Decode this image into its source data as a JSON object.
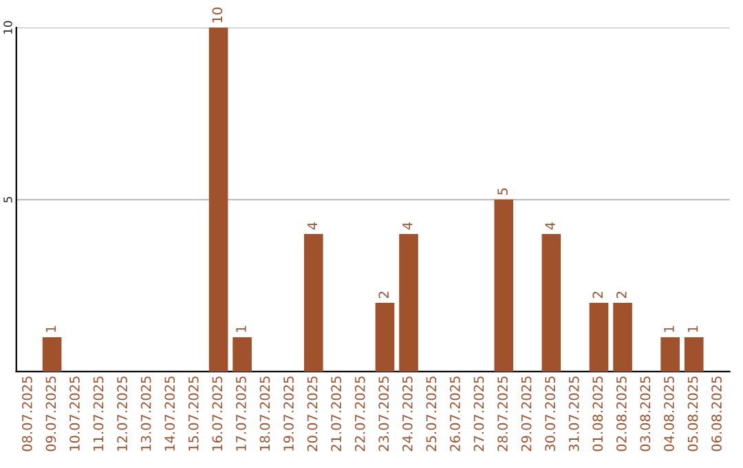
{
  "chart_data": {
    "type": "bar",
    "categories": [
      "08.07.2025",
      "09.07.2025",
      "10.07.2025",
      "11.07.2025",
      "12.07.2025",
      "13.07.2025",
      "14.07.2025",
      "15.07.2025",
      "16.07.2025",
      "17.07.2025",
      "18.07.2025",
      "19.07.2025",
      "20.07.2025",
      "21.07.2025",
      "22.07.2025",
      "23.07.2025",
      "24.07.2025",
      "25.07.2025",
      "26.07.2025",
      "27.07.2025",
      "28.07.2025",
      "29.07.2025",
      "30.07.2025",
      "31.07.2025",
      "01.08.2025",
      "02.08.2025",
      "03.08.2025",
      "04.08.2025",
      "05.08.2025",
      "06.08.2025"
    ],
    "values": [
      0,
      1,
      0,
      0,
      0,
      0,
      0,
      0,
      10,
      1,
      0,
      0,
      4,
      0,
      0,
      2,
      4,
      0,
      0,
      0,
      5,
      0,
      4,
      0,
      2,
      2,
      0,
      1,
      1,
      0
    ],
    "value_labels": [
      null,
      "1",
      null,
      null,
      null,
      null,
      null,
      null,
      "10",
      "1",
      null,
      null,
      "4",
      null,
      null,
      "2",
      "4",
      null,
      null,
      null,
      "5",
      null,
      "4",
      null,
      "2",
      "2",
      null,
      "1",
      "1",
      null
    ],
    "color": "#a0522d",
    "ylim": [
      0,
      10
    ],
    "yticks": [
      5,
      10
    ],
    "grid": "y"
  }
}
